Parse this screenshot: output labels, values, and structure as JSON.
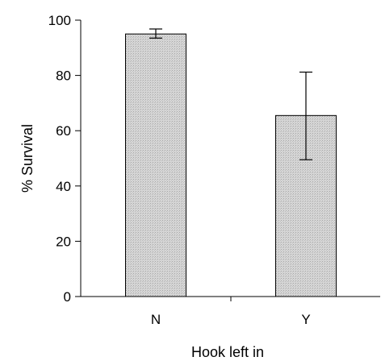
{
  "chart_data": {
    "type": "bar",
    "title": "",
    "xlabel": "Hook left in",
    "ylabel": "% Survival",
    "categories": [
      "N",
      "Y"
    ],
    "values": [
      95,
      65.5
    ],
    "error_bars": [
      {
        "low": 93.5,
        "high": 96.8
      },
      {
        "low": 49.5,
        "high": 81.2
      }
    ],
    "ylim": [
      0,
      100
    ],
    "yticks": [
      0,
      20,
      40,
      60,
      80,
      100
    ],
    "grid": false,
    "legend": "none",
    "bar_fill": "#d4d4d4",
    "bar_stroke": "#000000"
  }
}
